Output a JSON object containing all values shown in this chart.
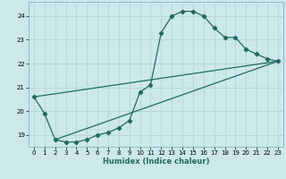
{
  "xlabel": "Humidex (Indice chaleur)",
  "bg_color": "#cce8ea",
  "grid_color": "#b8d5d8",
  "line_color": "#1e6b5e",
  "xlim": [
    -0.5,
    23.5
  ],
  "ylim": [
    18.5,
    24.6
  ],
  "xticks": [
    0,
    1,
    2,
    3,
    4,
    5,
    6,
    7,
    8,
    9,
    10,
    11,
    12,
    13,
    14,
    15,
    16,
    17,
    18,
    19,
    20,
    21,
    22,
    23
  ],
  "yticks": [
    19,
    20,
    21,
    22,
    23,
    24
  ],
  "curve_x": [
    0,
    1,
    2,
    3,
    4,
    5,
    6,
    7,
    8,
    9,
    10,
    11,
    12,
    13,
    14,
    15,
    16,
    17,
    18,
    19,
    20,
    21,
    22,
    23
  ],
  "curve_y": [
    20.6,
    19.9,
    18.8,
    18.7,
    18.7,
    18.8,
    19.0,
    19.1,
    19.3,
    19.6,
    20.8,
    21.1,
    23.3,
    24.0,
    24.2,
    24.2,
    24.0,
    23.5,
    23.1,
    23.1,
    22.6,
    22.4,
    22.2,
    22.1
  ],
  "line1_x": [
    0,
    23
  ],
  "line1_y": [
    20.6,
    22.1
  ],
  "line2_x": [
    2,
    23
  ],
  "line2_y": [
    18.8,
    22.1
  ]
}
